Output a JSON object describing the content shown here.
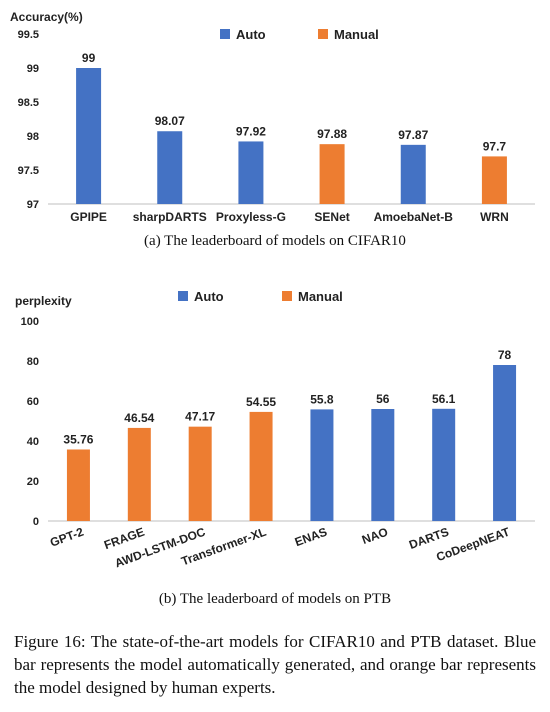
{
  "chart_data": [
    {
      "type": "bar",
      "ylabel": "Accuracy(%)",
      "ylim": [
        97,
        99.5
      ],
      "yticks": [
        "97",
        "97.5",
        "98",
        "98.5",
        "99",
        "99.5"
      ],
      "categories": [
        "GPIPE",
        "sharpDARTS",
        "Proxyless-G",
        "SENet",
        "AmoebaNet-B",
        "WRN"
      ],
      "values": [
        99,
        98.07,
        97.92,
        97.88,
        97.87,
        97.7
      ],
      "value_labels": [
        "99",
        "98.07",
        "97.92",
        "97.88",
        "97.87",
        "97.7"
      ],
      "groups": [
        "Auto",
        "Auto",
        "Auto",
        "Manual",
        "Auto",
        "Manual"
      ],
      "legend": [
        {
          "name": "Auto",
          "color": "#4472c4"
        },
        {
          "name": "Manual",
          "color": "#ed7d31"
        }
      ],
      "legend_position": "top",
      "grid": false
    },
    {
      "type": "bar",
      "ylabel": "perplexity",
      "ylim": [
        0,
        100
      ],
      "yticks": [
        "0",
        "20",
        "40",
        "60",
        "80",
        "100"
      ],
      "categories": [
        "GPT-2",
        "FRAGE",
        "AWD-LSTM-DOC",
        "Transformer-XL",
        "ENAS",
        "NAO",
        "DARTS",
        "CoDeepNEAT"
      ],
      "values": [
        35.76,
        46.54,
        47.17,
        54.55,
        55.8,
        56,
        56.1,
        78
      ],
      "value_labels": [
        "35.76",
        "46.54",
        "47.17",
        "54.55",
        "55.8",
        "56",
        "56.1",
        "78"
      ],
      "groups": [
        "Manual",
        "Manual",
        "Manual",
        "Manual",
        "Auto",
        "Auto",
        "Auto",
        "Auto"
      ],
      "legend": [
        {
          "name": "Auto",
          "color": "#4472c4"
        },
        {
          "name": "Manual",
          "color": "#ed7d31"
        }
      ],
      "legend_position": "top",
      "grid": false
    }
  ],
  "captions": {
    "sub_a": "(a) The leaderboard of models on CIFAR10",
    "sub_b": "(b) The leaderboard of models on PTB",
    "figure": "Figure 16: The state-of-the-art models for CIFAR10 and PTB dataset. Blue bar represents the model automatically generated, and orange bar represents the model designed by human experts."
  }
}
